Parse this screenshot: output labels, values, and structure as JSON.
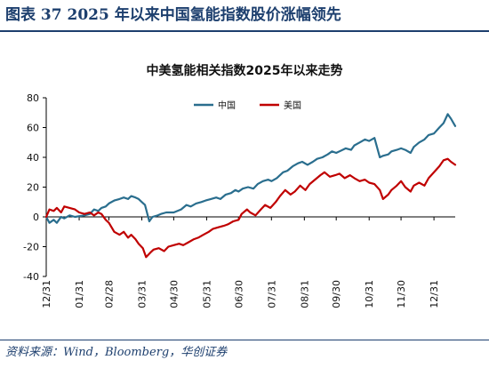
{
  "header": {
    "title": "图表 37    2025 年以来中国氢能指数股价涨幅领先"
  },
  "footer": {
    "source": "资料来源：Wind，Bloomberg，华创证券"
  },
  "colors": {
    "brand": "#1d3f6e",
    "china_series": "#2a6e8e",
    "us_series": "#c00000"
  },
  "chart_data": {
    "type": "line",
    "title": "中美氢能相关指数2025年以来走势",
    "xlabel": "",
    "ylabel": "",
    "ylim": [
      -40,
      80
    ],
    "yticks": [
      -40,
      -20,
      0,
      20,
      40,
      60,
      80
    ],
    "grid": false,
    "legend_position": "top-center",
    "x_tick_labels": [
      "12/31",
      "01/31",
      "02/28",
      "03/31",
      "04/30",
      "05/31",
      "06/30",
      "07/31",
      "08/31",
      "09/30",
      "10/31",
      "11/30",
      "12/31"
    ],
    "x_tick_dates": [
      "2024-12-31",
      "2025-01-31",
      "2025-02-28",
      "2025-03-31",
      "2025-04-30",
      "2025-05-31",
      "2025-06-30",
      "2025-07-31",
      "2025-08-31",
      "2025-09-30",
      "2025-10-31",
      "2025-11-30",
      "2025-12-31"
    ],
    "x_end": "2026-01-20",
    "series": [
      {
        "name": "中国",
        "color": "#2a6e8e",
        "points": [
          [
            "2024-12-31",
            0
          ],
          [
            "2025-01-03",
            -4
          ],
          [
            "2025-01-07",
            -2
          ],
          [
            "2025-01-10",
            -4
          ],
          [
            "2025-01-14",
            0
          ],
          [
            "2025-01-17",
            -1
          ],
          [
            "2025-01-22",
            1
          ],
          [
            "2025-01-27",
            0
          ],
          [
            "2025-02-05",
            1
          ],
          [
            "2025-02-10",
            2
          ],
          [
            "2025-02-14",
            5
          ],
          [
            "2025-02-18",
            4
          ],
          [
            "2025-02-21",
            6
          ],
          [
            "2025-02-25",
            7
          ],
          [
            "2025-02-28",
            9
          ],
          [
            "2025-03-05",
            11
          ],
          [
            "2025-03-10",
            12
          ],
          [
            "2025-03-14",
            13
          ],
          [
            "2025-03-18",
            12
          ],
          [
            "2025-03-21",
            14
          ],
          [
            "2025-03-25",
            13
          ],
          [
            "2025-03-28",
            12
          ],
          [
            "2025-03-31",
            10
          ],
          [
            "2025-04-03",
            8
          ],
          [
            "2025-04-07",
            -3
          ],
          [
            "2025-04-10",
            0
          ],
          [
            "2025-04-15",
            1
          ],
          [
            "2025-04-18",
            2
          ],
          [
            "2025-04-23",
            3
          ],
          [
            "2025-04-28",
            3
          ],
          [
            "2025-04-30",
            3
          ],
          [
            "2025-05-07",
            5
          ],
          [
            "2025-05-12",
            8
          ],
          [
            "2025-05-16",
            7
          ],
          [
            "2025-05-21",
            9
          ],
          [
            "2025-05-26",
            10
          ],
          [
            "2025-05-30",
            11
          ],
          [
            "2025-06-04",
            12
          ],
          [
            "2025-06-09",
            13
          ],
          [
            "2025-06-13",
            12
          ],
          [
            "2025-06-18",
            15
          ],
          [
            "2025-06-23",
            16
          ],
          [
            "2025-06-27",
            18
          ],
          [
            "2025-06-30",
            17
          ],
          [
            "2025-07-04",
            19
          ],
          [
            "2025-07-09",
            20
          ],
          [
            "2025-07-14",
            19
          ],
          [
            "2025-07-18",
            22
          ],
          [
            "2025-07-23",
            24
          ],
          [
            "2025-07-28",
            25
          ],
          [
            "2025-07-31",
            24
          ],
          [
            "2025-08-05",
            26
          ],
          [
            "2025-08-11",
            30
          ],
          [
            "2025-08-15",
            31
          ],
          [
            "2025-08-20",
            34
          ],
          [
            "2025-08-25",
            36
          ],
          [
            "2025-08-29",
            37
          ],
          [
            "2025-09-03",
            35
          ],
          [
            "2025-09-08",
            37
          ],
          [
            "2025-09-12",
            39
          ],
          [
            "2025-09-17",
            40
          ],
          [
            "2025-09-22",
            42
          ],
          [
            "2025-09-26",
            44
          ],
          [
            "2025-09-30",
            43
          ],
          [
            "2025-10-09",
            46
          ],
          [
            "2025-10-14",
            45
          ],
          [
            "2025-10-17",
            48
          ],
          [
            "2025-10-22",
            50
          ],
          [
            "2025-10-27",
            52
          ],
          [
            "2025-10-31",
            51
          ],
          [
            "2025-11-05",
            53
          ],
          [
            "2025-11-10",
            40
          ],
          [
            "2025-11-13",
            41
          ],
          [
            "2025-11-18",
            42
          ],
          [
            "2025-11-21",
            44
          ],
          [
            "2025-11-26",
            45
          ],
          [
            "2025-11-30",
            46
          ],
          [
            "2025-12-04",
            45
          ],
          [
            "2025-12-09",
            43
          ],
          [
            "2025-12-12",
            47
          ],
          [
            "2025-12-17",
            50
          ],
          [
            "2025-12-22",
            52
          ],
          [
            "2025-12-26",
            55
          ],
          [
            "2025-12-31",
            56
          ],
          [
            "2026-01-05",
            60
          ],
          [
            "2026-01-09",
            63
          ],
          [
            "2026-01-13",
            69
          ],
          [
            "2026-01-16",
            66
          ],
          [
            "2026-01-20",
            61
          ]
        ]
      },
      {
        "name": "美国",
        "color": "#c00000",
        "points": [
          [
            "2024-12-31",
            0
          ],
          [
            "2025-01-03",
            5
          ],
          [
            "2025-01-07",
            4
          ],
          [
            "2025-01-10",
            6
          ],
          [
            "2025-01-14",
            3
          ],
          [
            "2025-01-17",
            7
          ],
          [
            "2025-01-22",
            6
          ],
          [
            "2025-01-27",
            5
          ],
          [
            "2025-01-31",
            3
          ],
          [
            "2025-02-05",
            2
          ],
          [
            "2025-02-10",
            3
          ],
          [
            "2025-02-14",
            1
          ],
          [
            "2025-02-18",
            3
          ],
          [
            "2025-02-21",
            2
          ],
          [
            "2025-02-25",
            -2
          ],
          [
            "2025-02-28",
            -4
          ],
          [
            "2025-03-05",
            -10
          ],
          [
            "2025-03-10",
            -12
          ],
          [
            "2025-03-14",
            -10
          ],
          [
            "2025-03-18",
            -14
          ],
          [
            "2025-03-21",
            -12
          ],
          [
            "2025-03-25",
            -15
          ],
          [
            "2025-03-28",
            -18
          ],
          [
            "2025-04-01",
            -21
          ],
          [
            "2025-04-04",
            -27
          ],
          [
            "2025-04-08",
            -24
          ],
          [
            "2025-04-11",
            -22
          ],
          [
            "2025-04-16",
            -21
          ],
          [
            "2025-04-21",
            -23
          ],
          [
            "2025-04-25",
            -20
          ],
          [
            "2025-04-30",
            -19
          ],
          [
            "2025-05-05",
            -18
          ],
          [
            "2025-05-09",
            -19
          ],
          [
            "2025-05-14",
            -17
          ],
          [
            "2025-05-19",
            -15
          ],
          [
            "2025-05-23",
            -14
          ],
          [
            "2025-05-28",
            -12
          ],
          [
            "2025-06-02",
            -10
          ],
          [
            "2025-06-06",
            -8
          ],
          [
            "2025-06-11",
            -7
          ],
          [
            "2025-06-16",
            -6
          ],
          [
            "2025-06-20",
            -5
          ],
          [
            "2025-06-25",
            -3
          ],
          [
            "2025-06-30",
            -2
          ],
          [
            "2025-07-03",
            2
          ],
          [
            "2025-07-08",
            5
          ],
          [
            "2025-07-11",
            3
          ],
          [
            "2025-07-16",
            1
          ],
          [
            "2025-07-21",
            5
          ],
          [
            "2025-07-25",
            8
          ],
          [
            "2025-07-30",
            6
          ],
          [
            "2025-08-04",
            10
          ],
          [
            "2025-08-08",
            14
          ],
          [
            "2025-08-13",
            18
          ],
          [
            "2025-08-18",
            15
          ],
          [
            "2025-08-22",
            17
          ],
          [
            "2025-08-27",
            21
          ],
          [
            "2025-09-01",
            18
          ],
          [
            "2025-09-05",
            22
          ],
          [
            "2025-09-10",
            25
          ],
          [
            "2025-09-15",
            28
          ],
          [
            "2025-09-19",
            30
          ],
          [
            "2025-09-24",
            27
          ],
          [
            "2025-09-29",
            28
          ],
          [
            "2025-10-03",
            29
          ],
          [
            "2025-10-08",
            26
          ],
          [
            "2025-10-13",
            28
          ],
          [
            "2025-10-17",
            26
          ],
          [
            "2025-10-22",
            24
          ],
          [
            "2025-10-27",
            25
          ],
          [
            "2025-10-31",
            23
          ],
          [
            "2025-11-05",
            22
          ],
          [
            "2025-11-10",
            18
          ],
          [
            "2025-11-13",
            12
          ],
          [
            "2025-11-18",
            15
          ],
          [
            "2025-11-21",
            18
          ],
          [
            "2025-11-26",
            21
          ],
          [
            "2025-11-30",
            24
          ],
          [
            "2025-12-04",
            20
          ],
          [
            "2025-12-09",
            17
          ],
          [
            "2025-12-12",
            21
          ],
          [
            "2025-12-17",
            23
          ],
          [
            "2025-12-22",
            21
          ],
          [
            "2025-12-26",
            26
          ],
          [
            "2025-12-31",
            30
          ],
          [
            "2026-01-05",
            34
          ],
          [
            "2026-01-09",
            38
          ],
          [
            "2026-01-13",
            39
          ],
          [
            "2026-01-16",
            37
          ],
          [
            "2026-01-20",
            35
          ]
        ]
      }
    ]
  }
}
